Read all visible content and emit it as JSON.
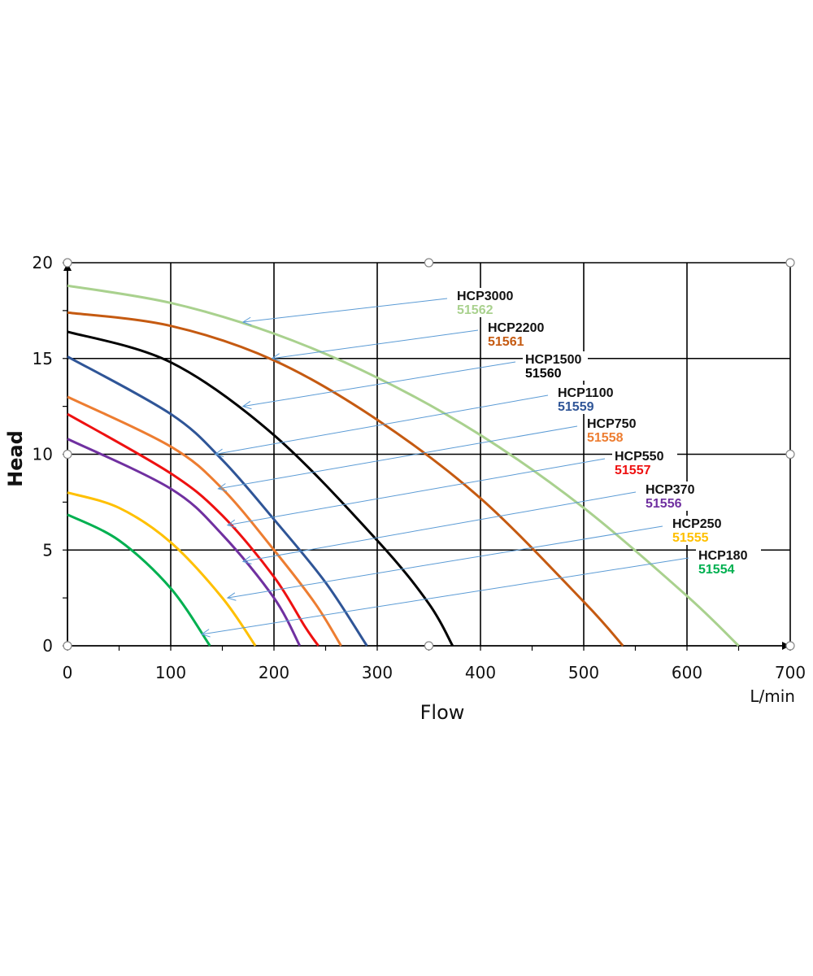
{
  "chart_data": {
    "type": "line",
    "title": "",
    "xlabel": "Flow",
    "ylabel": "Head",
    "x_unit": "L/min",
    "xlim": [
      0,
      700
    ],
    "ylim": [
      0,
      20
    ],
    "x_ticks": [
      0,
      100,
      200,
      300,
      400,
      500,
      600,
      700
    ],
    "y_ticks": [
      0,
      5,
      10,
      15,
      20
    ],
    "grid": true,
    "series": [
      {
        "name": "HCP3000",
        "code": "51562",
        "color": "#a9d18e",
        "x": [
          0,
          100,
          200,
          300,
          400,
          500,
          600,
          650
        ],
        "y": [
          18.8,
          17.9,
          16.3,
          14.0,
          11.0,
          7.2,
          2.6,
          0
        ]
      },
      {
        "name": "HCP2200",
        "code": "51561",
        "color": "#c55a11",
        "x": [
          0,
          100,
          200,
          300,
          400,
          500,
          538
        ],
        "y": [
          17.4,
          16.7,
          14.9,
          11.8,
          7.7,
          2.3,
          0
        ]
      },
      {
        "name": "HCP1500",
        "code": "51560",
        "color": "#000000",
        "x": [
          0,
          100,
          200,
          300,
          350,
          373
        ],
        "y": [
          16.4,
          14.8,
          11.0,
          5.5,
          2.2,
          0
        ]
      },
      {
        "name": "HCP1100",
        "code": "51559",
        "color": "#2f5597",
        "x": [
          0,
          100,
          150,
          200,
          250,
          290
        ],
        "y": [
          15.1,
          12.1,
          9.7,
          6.6,
          3.3,
          0
        ]
      },
      {
        "name": "HCP750",
        "code": "51558",
        "color": "#ed7d31",
        "x": [
          0,
          100,
          150,
          200,
          240,
          265
        ],
        "y": [
          13.0,
          10.4,
          8.2,
          5.0,
          2.2,
          0
        ]
      },
      {
        "name": "HCP550",
        "code": "51557",
        "color": "#ee1111",
        "x": [
          0,
          100,
          150,
          200,
          230,
          243
        ],
        "y": [
          12.1,
          9.0,
          6.8,
          3.6,
          1.0,
          0
        ]
      },
      {
        "name": "HCP370",
        "code": "51556",
        "color": "#7030a0",
        "x": [
          0,
          100,
          150,
          200,
          225
        ],
        "y": [
          10.8,
          8.2,
          5.8,
          2.5,
          0
        ]
      },
      {
        "name": "HCP250",
        "code": "51555",
        "color": "#ffc000",
        "x": [
          0,
          50,
          100,
          150,
          182
        ],
        "y": [
          8.0,
          7.2,
          5.4,
          2.5,
          0
        ]
      },
      {
        "name": "HCP180",
        "code": "51554",
        "color": "#00b050",
        "x": [
          0,
          50,
          100,
          138
        ],
        "y": [
          6.85,
          5.5,
          3.0,
          0
        ]
      }
    ],
    "annotations": [
      {
        "series": "HCP3000",
        "arrow_to": [
          170,
          16.9
        ]
      },
      {
        "series": "HCP2200",
        "arrow_to": [
          198,
          15.0
        ]
      },
      {
        "series": "HCP1500",
        "arrow_to": [
          170,
          12.5
        ]
      },
      {
        "series": "HCP1100",
        "arrow_to": [
          143,
          10.0
        ]
      },
      {
        "series": "HCP750",
        "arrow_to": [
          146,
          8.2
        ]
      },
      {
        "series": "HCP550",
        "arrow_to": [
          155,
          6.3
        ]
      },
      {
        "series": "HCP370",
        "arrow_to": [
          170,
          4.4
        ]
      },
      {
        "series": "HCP250",
        "arrow_to": [
          155,
          2.5
        ]
      },
      {
        "series": "HCP180",
        "arrow_to": [
          130,
          0.6
        ]
      }
    ],
    "annotation_arrow_color": "#5b9bd5",
    "grid_color": "#000000"
  }
}
